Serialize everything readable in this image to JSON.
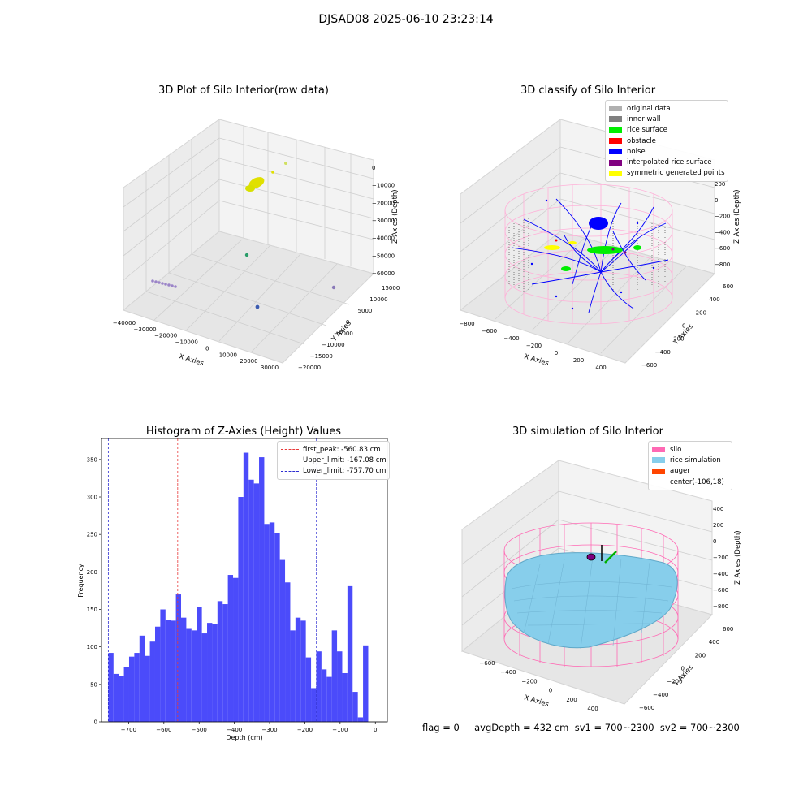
{
  "suptitle": "DJSAD08 2025-06-10 23:23:14",
  "footer": "flag = 0     avgDepth = 432 cm  sv1 = 700~2300  sv2 = 700~2300",
  "colors": {
    "hist_bar": "#4b4bfa",
    "first_peak": "#e83a3a",
    "limits": "#2e2ed1",
    "rice_yellow": "#e0e000",
    "silo_pink": "#ff69b4",
    "rice_sim": "#87ceeb",
    "auger": "#ff4500",
    "noise": "#0000ff",
    "rice_surface": "#00ee00"
  },
  "plot1": {
    "title": "3D Plot of Silo Interior(row data)",
    "xlabel": "X Axies",
    "ylabel": "Y Axies",
    "zlabel": "Z Axies (Depth)",
    "xticks": [
      "−40000",
      "−30000",
      "−20000",
      "−10000",
      "0",
      "10000",
      "20000",
      "30000"
    ],
    "yticks": [
      "−20000",
      "−15000",
      "−10000",
      "−5000",
      "0",
      "5000",
      "10000",
      "15000"
    ],
    "zticks": [
      "0",
      "−10000",
      "−20000",
      "−30000",
      "−40000",
      "−50000",
      "−60000"
    ]
  },
  "plot2": {
    "title": "3D classify of Silo Interior",
    "xlabel": "X Axies",
    "ylabel": "Y Axies",
    "zlabel": "Z Axies (Depth)",
    "xticks": [
      "−800",
      "−600",
      "−400",
      "−200",
      "0",
      "200",
      "400"
    ],
    "yticks": [
      "−600",
      "−400",
      "−200",
      "0",
      "200",
      "400",
      "600"
    ],
    "zticks": [
      "200",
      "0",
      "−200",
      "−400",
      "−600",
      "−800"
    ],
    "legend": [
      {
        "label": "original data",
        "color": "#b0b0b0"
      },
      {
        "label": "inner wall",
        "color": "#808080"
      },
      {
        "label": "rice surface",
        "color": "#00ee00"
      },
      {
        "label": "obstacle",
        "color": "#ff0000"
      },
      {
        "label": "noise",
        "color": "#0000ff"
      },
      {
        "label": "interpolated rice surface",
        "color": "#800080"
      },
      {
        "label": "symmetric generated points",
        "color": "#ffff00"
      }
    ]
  },
  "plot4": {
    "title": "3D simulation of Silo Interior",
    "xlabel": "X Axies",
    "ylabel": "Y Axies",
    "zlabel": "Z Axies (Depth)",
    "xticks": [
      "−600",
      "−400",
      "−200",
      "0",
      "200",
      "400"
    ],
    "yticks": [
      "−600",
      "−400",
      "−200",
      "0",
      "200",
      "400",
      "600"
    ],
    "zticks": [
      "400",
      "200",
      "0",
      "−200",
      "−400",
      "−600",
      "−800"
    ],
    "legend": [
      {
        "label": "silo",
        "color": "#ff69b4"
      },
      {
        "label": "rice simulation",
        "color": "#87ceeb"
      },
      {
        "label": "auger",
        "color": "#ff4500"
      },
      {
        "label": "center(-106,18)",
        "color": ""
      }
    ]
  },
  "chart_data": {
    "type": "bar",
    "title": "Histogram of Z-Axies (Height) Values",
    "xlabel": "Depth (cm)",
    "ylabel": "Frequency",
    "xlim": [
      -777,
      34
    ],
    "ylim": [
      0,
      378
    ],
    "xticks": [
      -700,
      -600,
      -500,
      -400,
      -300,
      -200,
      -100,
      0
    ],
    "yticks": [
      0,
      50,
      100,
      150,
      200,
      250,
      300,
      350
    ],
    "bin_start": -757.7,
    "bin_width": 14.75,
    "values": [
      92,
      64,
      61,
      73,
      87,
      92,
      115,
      88,
      107,
      127,
      150,
      136,
      135,
      170,
      139,
      124,
      122,
      153,
      118,
      132,
      130,
      161,
      157,
      196,
      192,
      300,
      359,
      323,
      318,
      353,
      264,
      266,
      252,
      216,
      186,
      122,
      139,
      135,
      86,
      45,
      94,
      70,
      60,
      122,
      94,
      65,
      181,
      40,
      6,
      102
    ],
    "lines": [
      {
        "name": "first_peak: -560.83 cm",
        "x": -560.83,
        "style": "first_peak"
      },
      {
        "name": "Upper_limit: -167.08 cm",
        "x": -167.08,
        "style": "limit"
      },
      {
        "name": "Lower_limit: -757.70 cm",
        "x": -757.7,
        "style": "limit"
      }
    ],
    "legend_position": "top-right",
    "grid": false
  }
}
